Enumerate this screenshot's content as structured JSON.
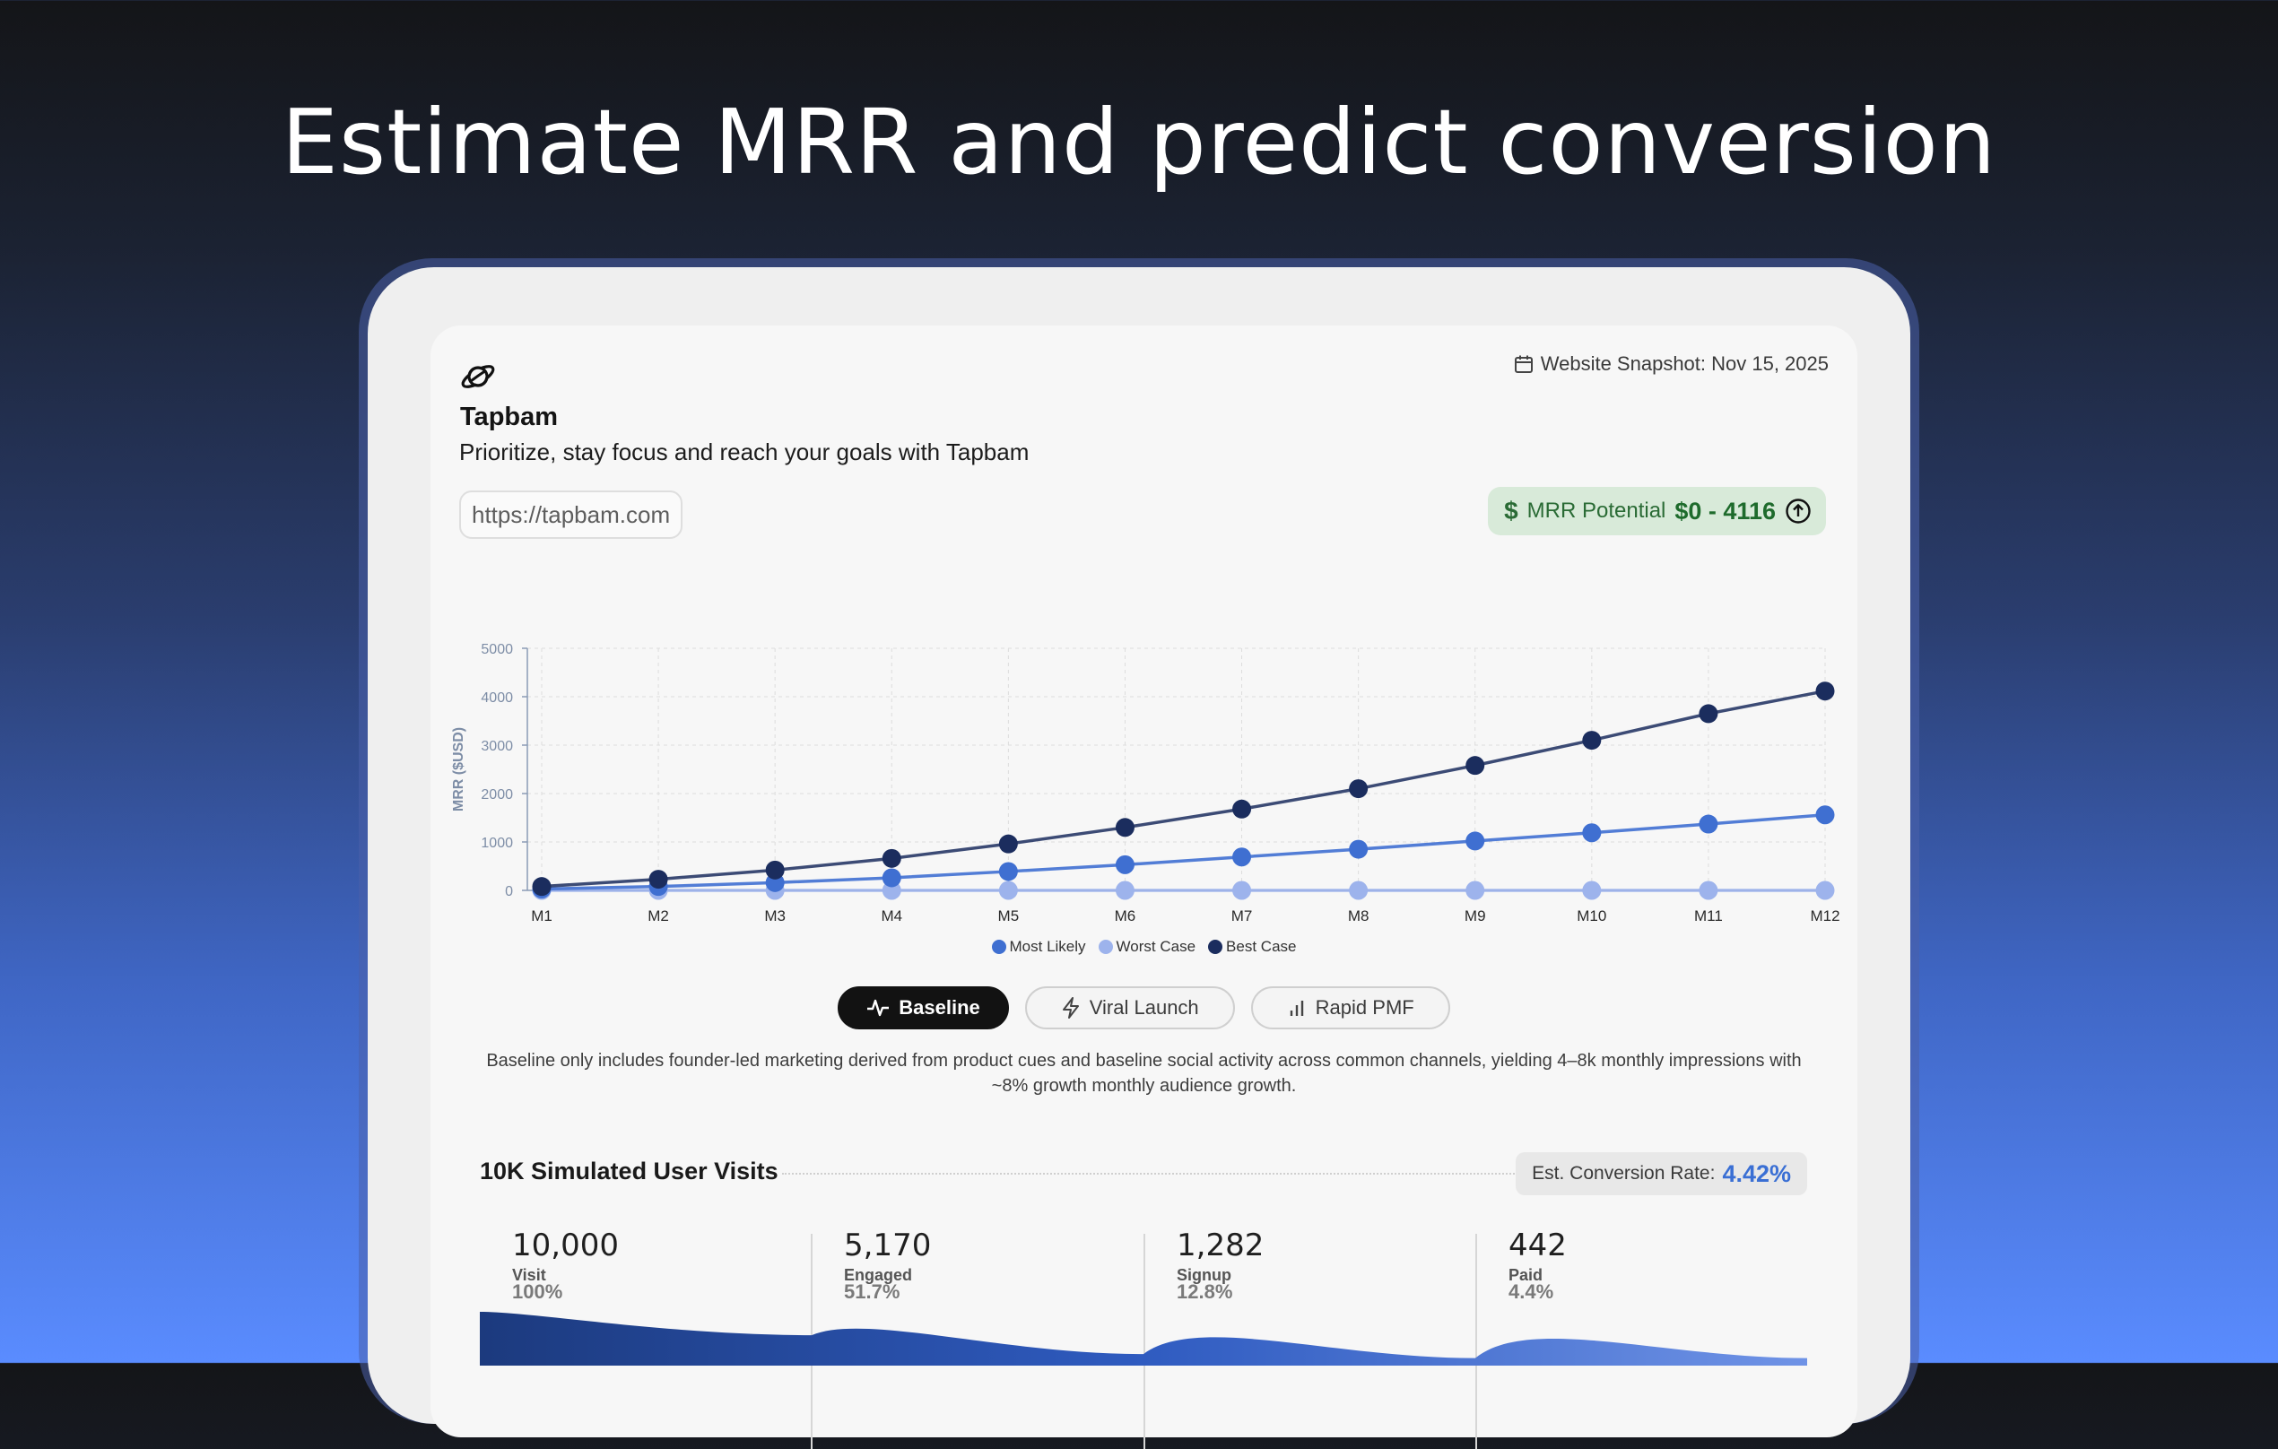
{
  "hero": {
    "title": "Estimate MRR and predict conversion"
  },
  "app": {
    "name": "Tapbam",
    "tagline": "Prioritize, stay focus and reach your goals with Tapbam",
    "url": "https://tapbam.com",
    "logo_icon": "planet-icon"
  },
  "snapshot": {
    "label": "Website Snapshot: Nov 15, 2025",
    "icon": "calendar-icon"
  },
  "mrr": {
    "label": "MRR Potential",
    "value": "$0 - 4116",
    "icon": "dollar-icon",
    "action_icon": "arrow-up-circle-icon",
    "color": "#1e6b2c"
  },
  "chart_data": {
    "type": "line",
    "ylabel": "MRR ($USD)",
    "xlabel": "",
    "ylim": [
      0,
      5000
    ],
    "yticks": [
      0,
      1000,
      2000,
      3000,
      4000,
      5000
    ],
    "categories": [
      "M1",
      "M2",
      "M3",
      "M4",
      "M5",
      "M6",
      "M7",
      "M8",
      "M9",
      "M10",
      "M11",
      "M12"
    ],
    "grid": true,
    "legend_position": "bottom",
    "series": [
      {
        "name": "Most Likely",
        "color": "#3f6fd1",
        "values": [
          30,
          80,
          160,
          260,
          390,
          530,
          690,
          850,
          1020,
          1190,
          1370,
          1560
        ]
      },
      {
        "name": "Worst Case",
        "color": "#9db3ec",
        "values": [
          0,
          0,
          0,
          0,
          0,
          0,
          0,
          0,
          0,
          0,
          0,
          0
        ]
      },
      {
        "name": "Best Case",
        "color": "#1b2d5e",
        "values": [
          80,
          230,
          420,
          660,
          960,
          1300,
          1680,
          2100,
          2580,
          3100,
          3650,
          4116
        ]
      }
    ]
  },
  "scenarios": [
    {
      "label": "Baseline",
      "icon": "activity-icon",
      "active": true
    },
    {
      "label": "Viral Launch",
      "icon": "lightning-icon",
      "active": false
    },
    {
      "label": "Rapid PMF",
      "icon": "bar-chart-icon",
      "active": false
    }
  ],
  "description": "Baseline only includes founder-led marketing derived from product cues and baseline social activity across common channels, yielding 4–8k monthly impressions with ~8% growth monthly audience growth.",
  "visits": {
    "title": "10K Simulated User Visits",
    "conversion_label": "Est. Conversion Rate:",
    "conversion_value": "4.42%"
  },
  "funnel": [
    {
      "count": "10,000",
      "stage": "Visit",
      "pct": "100%",
      "fraction": 1.0
    },
    {
      "count": "5,170",
      "stage": "Engaged",
      "pct": "51.7%",
      "fraction": 0.517
    },
    {
      "count": "1,282",
      "stage": "Signup",
      "pct": "12.8%",
      "fraction": 0.128
    },
    {
      "count": "442",
      "stage": "Paid",
      "pct": "4.4%",
      "fraction": 0.044
    }
  ]
}
